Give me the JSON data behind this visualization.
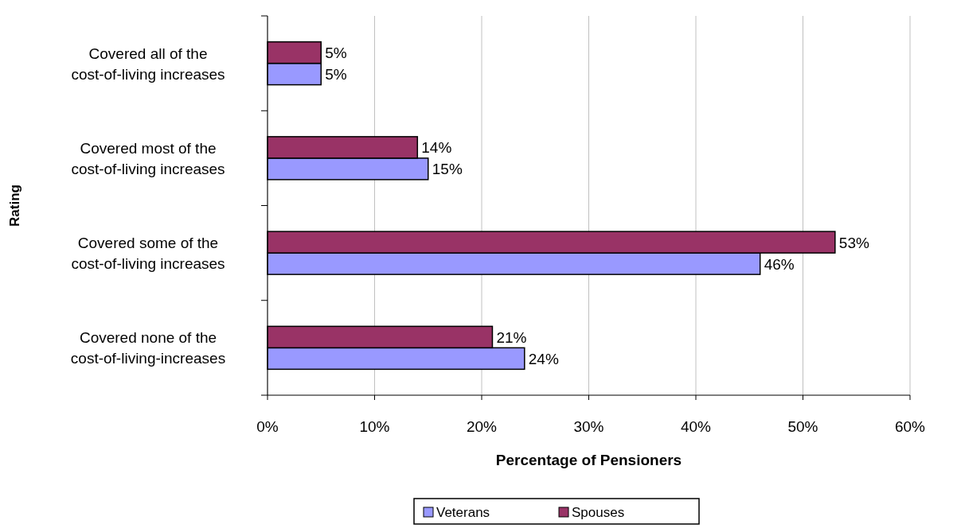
{
  "chart_data": {
    "type": "bar",
    "orientation": "horizontal",
    "xlabel": "Percentage of Pensioners",
    "ylabel": "Rating",
    "categories": [
      "Covered all of the cost-of-living increases",
      "Covered most of the cost-of-living increases",
      "Covered some of the cost-of-living increases",
      "Covered none of the cost-of-living-increases"
    ],
    "series": [
      {
        "name": "Veterans",
        "color": "#9999ff",
        "values": [
          5,
          15,
          46,
          24
        ],
        "value_labels": [
          "5%",
          "15%",
          "46%",
          "24%"
        ]
      },
      {
        "name": "Spouses",
        "color": "#993366",
        "values": [
          5,
          14,
          53,
          21
        ],
        "value_labels": [
          "5%",
          "14%",
          "53%",
          "21%"
        ]
      }
    ],
    "xlim": [
      0,
      60
    ],
    "xticks": [
      {
        "value": 0,
        "label": "0%"
      },
      {
        "value": 10,
        "label": "10%"
      },
      {
        "value": 20,
        "label": "20%"
      },
      {
        "value": 30,
        "label": "30%"
      },
      {
        "value": 40,
        "label": "40%"
      },
      {
        "value": 50,
        "label": "50%"
      },
      {
        "value": 60,
        "label": "60%"
      }
    ],
    "grid": "x",
    "legend": "bottom"
  }
}
